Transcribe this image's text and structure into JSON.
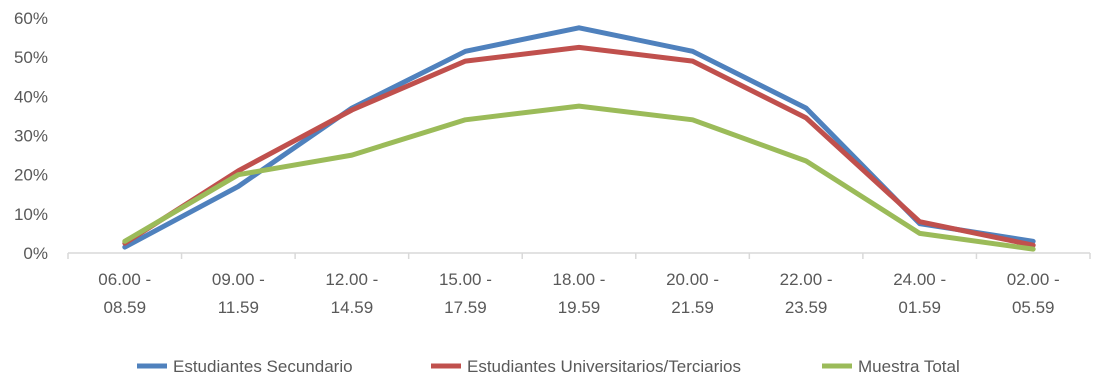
{
  "chart_data": {
    "type": "line",
    "title": "",
    "xlabel": "",
    "ylabel": "",
    "ylim": [
      0,
      60
    ],
    "y_ticks": [
      "0%",
      "10%",
      "20%",
      "30%",
      "40%",
      "50%",
      "60%"
    ],
    "y_tick_values": [
      0,
      10,
      20,
      30,
      40,
      50,
      60
    ],
    "grid": false,
    "legend_position": "bottom",
    "categories": [
      [
        "06.00 -",
        "08.59"
      ],
      [
        "09.00 -",
        "11.59"
      ],
      [
        "12.00 -",
        "14.59"
      ],
      [
        "15.00 -",
        "17.59"
      ],
      [
        "18.00 -",
        "19.59"
      ],
      [
        "20.00 -",
        "21.59"
      ],
      [
        "22.00 -",
        "23.59"
      ],
      [
        "24.00 -",
        "01.59"
      ],
      [
        "02.00 -",
        "05.59"
      ]
    ],
    "series": [
      {
        "name": "Estudiantes Secundario",
        "color": "#4F81BD",
        "values": [
          1.5,
          17,
          37,
          51.5,
          57.5,
          51.5,
          37,
          7.5,
          3
        ]
      },
      {
        "name": "Estudiantes Universitarios/Terciarios",
        "color": "#C0504D",
        "values": [
          2.5,
          21,
          36.5,
          49,
          52.5,
          49,
          34.5,
          8,
          2
        ]
      },
      {
        "name": "Muestra Total",
        "color": "#9BBB59",
        "values": [
          3,
          20,
          25,
          34,
          37.5,
          34,
          23.5,
          5,
          1
        ]
      }
    ]
  }
}
